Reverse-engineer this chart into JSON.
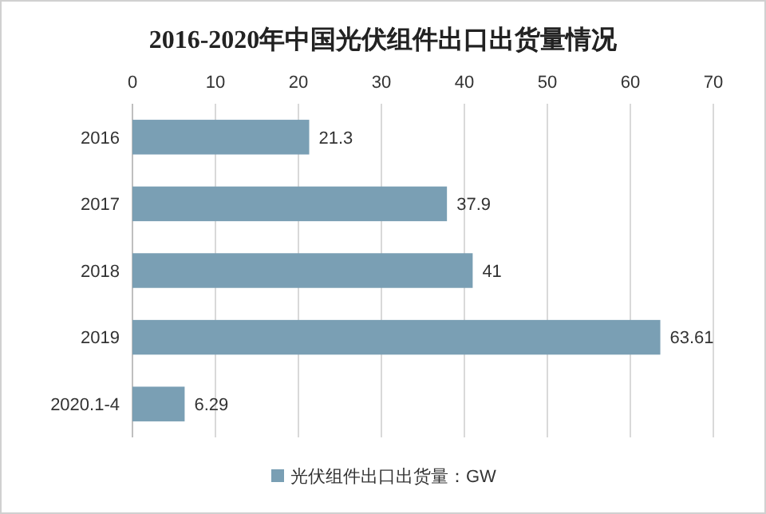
{
  "chart_data": {
    "type": "bar",
    "orientation": "horizontal",
    "title": "2016-2020年中国光伏组件出口出货量情况",
    "categories": [
      "2016",
      "2017",
      "2018",
      "2019",
      "2020.1-4"
    ],
    "series": [
      {
        "name": "光伏组件出口出货量：GW",
        "color": "#7a9fb4",
        "values": [
          21.3,
          37.9,
          41,
          63.61,
          6.29
        ]
      }
    ],
    "xlim": [
      0,
      70
    ],
    "xticks": [
      0,
      10,
      20,
      30,
      40,
      50,
      60,
      70
    ],
    "grid": "x",
    "data_labels": true,
    "legend": "bottom"
  }
}
